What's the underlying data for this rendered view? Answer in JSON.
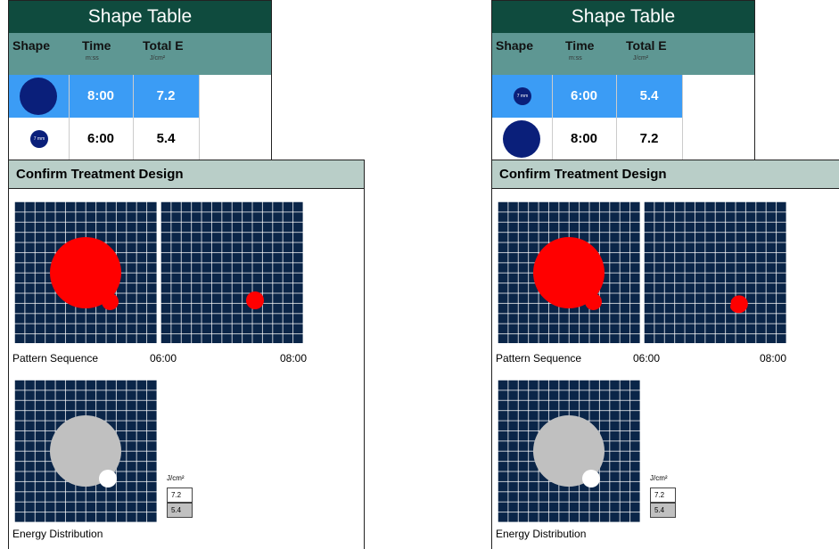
{
  "panels": [
    {
      "shape_table": {
        "title": "Shape Table",
        "headers": [
          {
            "label": "Shape",
            "unit": ""
          },
          {
            "label": "Time",
            "unit": "m:ss"
          },
          {
            "label": "Total E",
            "unit": "J/cm²"
          }
        ],
        "rows": [
          {
            "shape": "large-circle",
            "time": "8:00",
            "energy": "7.2",
            "selected": true
          },
          {
            "shape": "small-circle-7mm",
            "shape_label": "7 mm",
            "time": "6:00",
            "energy": "5.4",
            "selected": false
          }
        ]
      },
      "confirm": {
        "title": "Confirm Treatment Design",
        "pattern_label": "Pattern Sequence",
        "time1": "06:00",
        "time2": "08:00",
        "energy_label": "Energy Distribution",
        "legend_unit": "J/cm²",
        "legend_values": [
          "7.2",
          "5.4"
        ]
      }
    },
    {
      "shape_table": {
        "title": "Shape Table",
        "headers": [
          {
            "label": "Shape",
            "unit": ""
          },
          {
            "label": "Time",
            "unit": "m:ss"
          },
          {
            "label": "Total E",
            "unit": "J/cm²"
          }
        ],
        "rows": [
          {
            "shape": "small-circle-7mm",
            "shape_label": "7 mm",
            "time": "6:00",
            "energy": "5.4",
            "selected": true
          },
          {
            "shape": "large-circle",
            "time": "8:00",
            "energy": "7.2",
            "selected": false
          }
        ]
      },
      "confirm": {
        "title": "Confirm Treatment Design",
        "pattern_label": "Pattern Sequence",
        "time1": "06:00",
        "time2": "08:00",
        "energy_label": "Energy Distribution",
        "legend_unit": "J/cm²",
        "legend_values": [
          "7.2",
          "5.4"
        ]
      }
    }
  ],
  "colors": {
    "table_title_bg": "#0f4b3e",
    "table_header_bg": "#5e9793",
    "selected_row": "#3b9cf5",
    "shape_fill": "#0a1f7a",
    "grid_bg": "#0a2548",
    "pattern_red": "#ff0000",
    "energy_gray": "#c0c0c0",
    "confirm_header_bg": "#b9cec8"
  }
}
